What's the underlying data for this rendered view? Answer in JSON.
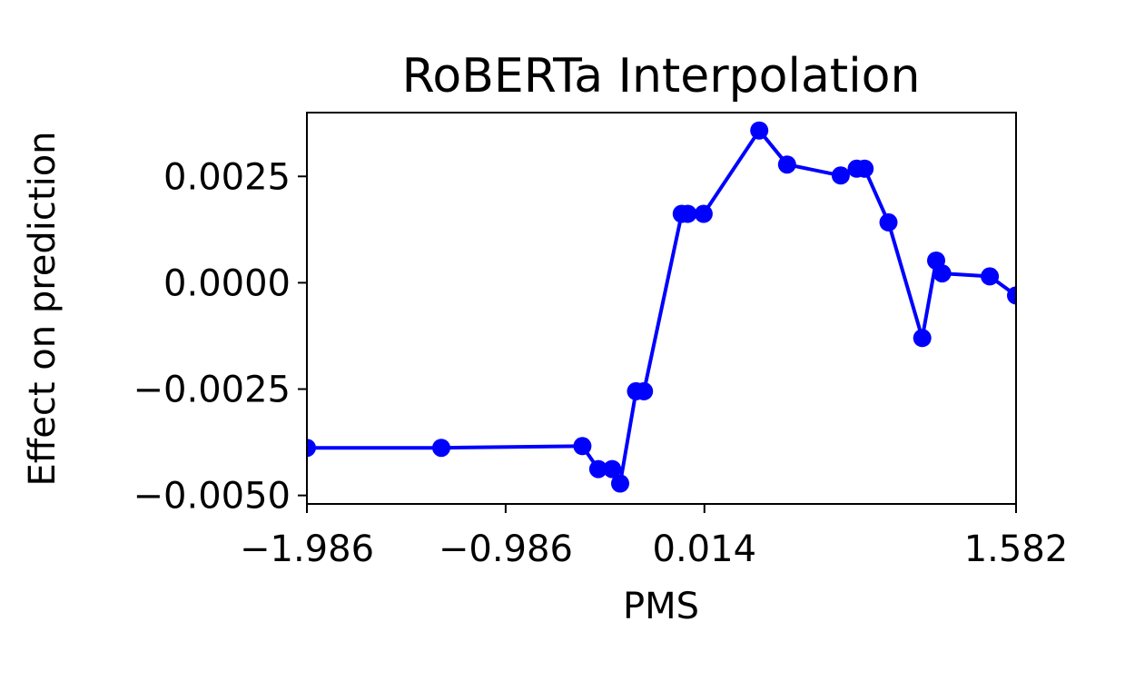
{
  "chart_data": {
    "type": "line",
    "title": "RoBERTa Interpolation",
    "xlabel": "PMS",
    "ylabel": "Effect on prediction",
    "xlim": [
      -1.986,
      1.582
    ],
    "ylim": [
      -0.0052,
      0.004
    ],
    "xticks": [
      -1.986,
      -0.986,
      0.014,
      1.582
    ],
    "xtick_labels": [
      "−1.986",
      "−0.986",
      "0.014",
      "1.582"
    ],
    "yticks": [
      0.0025,
      0.0,
      -0.0025,
      -0.005
    ],
    "ytick_labels": [
      "0.0025",
      "0.0000",
      "−0.0025",
      "−0.0050"
    ],
    "grid": false,
    "series": [
      {
        "color": "#0000ff",
        "marker": "circle",
        "x": [
          -1.986,
          -1.31,
          -0.6,
          -0.52,
          -0.45,
          -0.41,
          -0.33,
          -0.29,
          -0.1,
          -0.07,
          0.01,
          0.29,
          0.43,
          0.7,
          0.78,
          0.82,
          0.94,
          1.11,
          1.18,
          1.21,
          1.45,
          1.582
        ],
        "y": [
          -0.00388,
          -0.00388,
          -0.00384,
          -0.00438,
          -0.00438,
          -0.00472,
          -0.00255,
          -0.00255,
          0.00162,
          0.00162,
          0.00162,
          0.00358,
          0.00278,
          0.00252,
          0.00268,
          0.00268,
          0.00142,
          -0.0013,
          0.00052,
          0.00022,
          0.00015,
          -0.0003
        ]
      }
    ]
  }
}
